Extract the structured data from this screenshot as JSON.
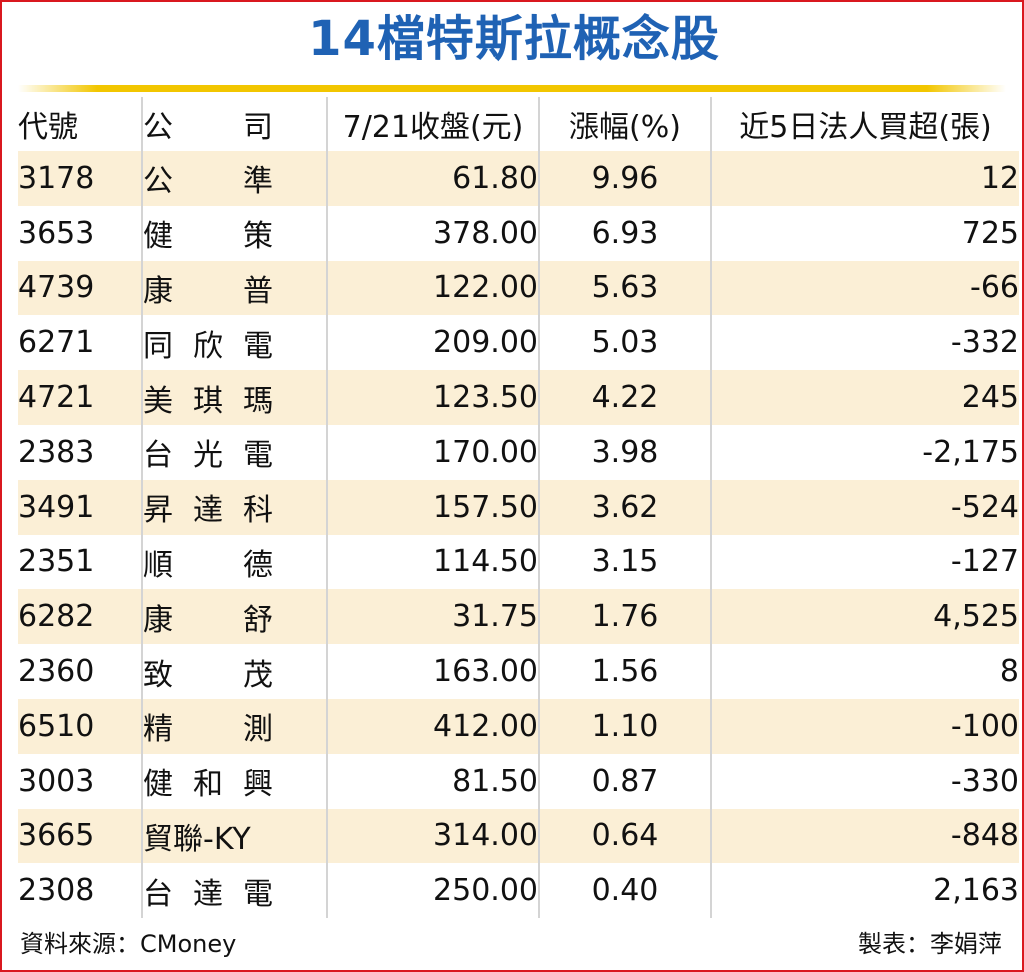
{
  "title": "14檔特斯拉概念股",
  "headers": {
    "code": "代號",
    "company": "公司",
    "close": "7/21收盤(元)",
    "change": "漲幅(%)",
    "net_buy": "近5日法人買超(張)"
  },
  "rows": [
    {
      "code": "3178",
      "company": "公準",
      "close": "61.80",
      "change": "9.96",
      "net_buy": "12"
    },
    {
      "code": "3653",
      "company": "健策",
      "close": "378.00",
      "change": "6.93",
      "net_buy": "725"
    },
    {
      "code": "4739",
      "company": "康普",
      "close": "122.00",
      "change": "5.63",
      "net_buy": "-66"
    },
    {
      "code": "6271",
      "company": "同欣電",
      "close": "209.00",
      "change": "5.03",
      "net_buy": "-332"
    },
    {
      "code": "4721",
      "company": "美琪瑪",
      "close": "123.50",
      "change": "4.22",
      "net_buy": "245"
    },
    {
      "code": "2383",
      "company": "台光電",
      "close": "170.00",
      "change": "3.98",
      "net_buy": "-2,175"
    },
    {
      "code": "3491",
      "company": "昇達科",
      "close": "157.50",
      "change": "3.62",
      "net_buy": "-524"
    },
    {
      "code": "2351",
      "company": "順德",
      "close": "114.50",
      "change": "3.15",
      "net_buy": "-127"
    },
    {
      "code": "6282",
      "company": "康舒",
      "close": "31.75",
      "change": "1.76",
      "net_buy": "4,525"
    },
    {
      "code": "2360",
      "company": "致茂",
      "close": "163.00",
      "change": "1.56",
      "net_buy": "8"
    },
    {
      "code": "6510",
      "company": "精測",
      "close": "412.00",
      "change": "1.10",
      "net_buy": "-100"
    },
    {
      "code": "3003",
      "company": "健和興",
      "close": "81.50",
      "change": "0.87",
      "net_buy": "-330"
    },
    {
      "code": "3665",
      "company": "貿聯-KY",
      "close": "314.00",
      "change": "0.64",
      "net_buy": "-848"
    },
    {
      "code": "2308",
      "company": "台達電",
      "close": "250.00",
      "change": "0.40",
      "net_buy": "2,163"
    }
  ],
  "footer": {
    "source": "資料來源：CMoney",
    "maker": "製表：李娟萍"
  },
  "colors": {
    "title": "#1f62b4",
    "rule": "#f2c600",
    "stripe": "#fbefd6",
    "border": "#d9181f"
  }
}
